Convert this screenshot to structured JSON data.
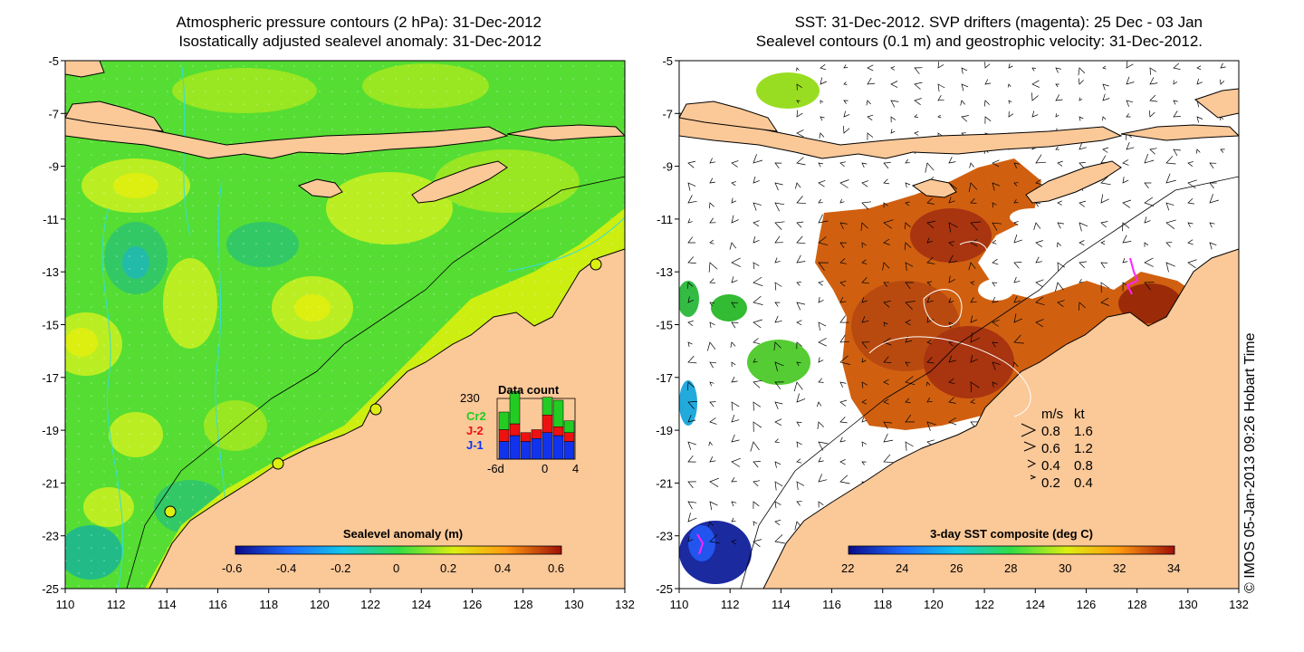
{
  "left_panel": {
    "title_line1": "Atmospheric pressure contours (2 hPa): 31-Dec-2012",
    "title_line2": "Isostatically adjusted sealevel anomaly: 31-Dec-2012",
    "colorbar": {
      "label": "Sealevel anomaly (m)",
      "ticks": [
        "-0.6",
        "-0.4",
        "-0.2",
        "0",
        "0.2",
        "0.4",
        "0.6"
      ]
    },
    "data_count": {
      "title": "Data count",
      "max_label": "230",
      "legend": [
        {
          "label": "Cr2",
          "color": "#22cc22"
        },
        {
          "label": "J-2",
          "color": "#ee1111"
        },
        {
          "label": "J-1",
          "color": "#1133ee"
        }
      ],
      "x_ticks": [
        "-6d",
        "0",
        "4"
      ],
      "bars": [
        {
          "j1": 0.3,
          "j2": 0.2,
          "cr2": 0.3
        },
        {
          "j1": 0.4,
          "j2": 0.2,
          "cr2": 0.55
        },
        {
          "j1": 0.3,
          "j2": 0.15,
          "cr2": 0.0
        },
        {
          "j1": 0.35,
          "j2": 0.15,
          "cr2": 0.0
        },
        {
          "j1": 0.45,
          "j2": 0.3,
          "cr2": 0.3
        },
        {
          "j1": 0.4,
          "j2": 0.15,
          "cr2": 0.45
        },
        {
          "j1": 0.3,
          "j2": 0.15,
          "cr2": 0.2
        }
      ]
    }
  },
  "right_panel": {
    "title_line1": "SST: 31-Dec-2012. SVP drifters (magenta): 25 Dec - 03 Jan",
    "title_line2": "Sealevel contours (0.1 m) and geostrophic velocity: 31-Dec-2012.",
    "colorbar": {
      "label": "3-day SST composite (deg C)",
      "ticks": [
        "22",
        "24",
        "26",
        "28",
        "30",
        "32",
        "34"
      ]
    },
    "velocity_legend": {
      "header_ms": "m/s",
      "header_kt": "kt",
      "rows": [
        {
          "ms": "0.8",
          "kt": "1.6"
        },
        {
          "ms": "0.6",
          "kt": "1.2"
        },
        {
          "ms": "0.4",
          "kt": "0.8"
        },
        {
          "ms": "0.2",
          "kt": "0.4"
        }
      ]
    }
  },
  "axes": {
    "lat_labels": [
      "-5",
      "-7",
      "-9",
      "-11",
      "-13",
      "-15",
      "-17",
      "-19",
      "-21",
      "-23",
      "-25"
    ],
    "lon_labels": [
      "110",
      "112",
      "114",
      "116",
      "118",
      "120",
      "122",
      "124",
      "126",
      "128",
      "130",
      "132"
    ]
  },
  "footer": {
    "vertical_text": "© IMOS 05-Jan-2013 09:26 Hobart Time"
  },
  "colors": {
    "land": "#fbc898",
    "ocean_green": "#55dd33",
    "ocean_yellow_green": "#bbee22",
    "sst_orange": "#d06010",
    "sst_darkred": "#a02a08",
    "contour_cyan": "#33dddd",
    "drifter_magenta": "#ff22ff"
  }
}
